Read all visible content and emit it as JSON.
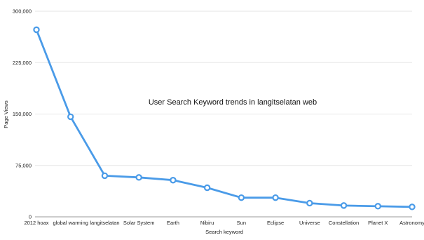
{
  "chart_data": {
    "type": "line",
    "title": "User Search Keyword trends in langitselatan web",
    "xlabel": "Search keyword",
    "ylabel": "Page Views",
    "categories": [
      "2012 hoax",
      "global warming",
      "langitselatan",
      "Solar System",
      "Earth",
      "Nibiru",
      "Sun",
      "Eclipse",
      "Universe",
      "Constellation",
      "Planet X",
      "Astronomy"
    ],
    "series": [
      {
        "values": [
          273000,
          146000,
          60000,
          57500,
          53500,
          42500,
          28000,
          28000,
          20000,
          16500,
          15500,
          14500
        ]
      }
    ],
    "ylim": [
      0,
      300000
    ],
    "yticks": [
      0,
      75000,
      150000,
      225000,
      300000
    ],
    "ytick_labels": [
      "0",
      "75,000",
      "150,000",
      "225,000",
      "300,000"
    ],
    "grid": true,
    "legend": "none",
    "colors": {
      "line": "#4a9be8",
      "marker_fill": "#ffffff"
    }
  }
}
